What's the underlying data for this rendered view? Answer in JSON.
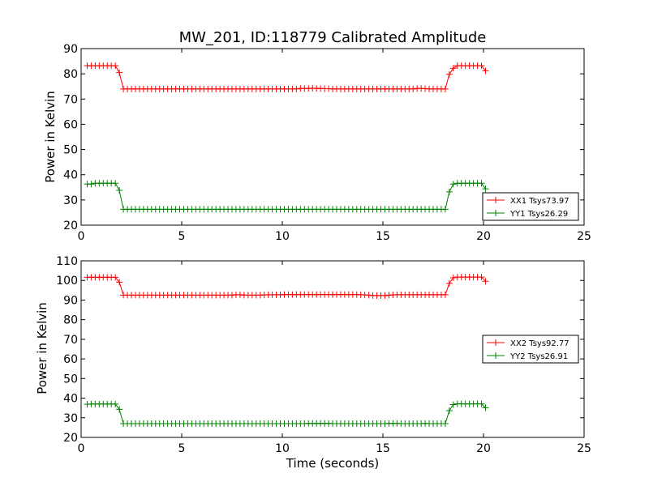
{
  "chart_data": [
    {
      "type": "line",
      "title": "MW_201, ID:118779 Calibrated Amplitude",
      "xlabel": "",
      "ylabel": "Power in Kelvin",
      "xlim": [
        0,
        25
      ],
      "ylim": [
        20,
        90
      ],
      "xticks": [
        "0",
        "5",
        "10",
        "15",
        "20",
        "25"
      ],
      "yticks": [
        "20",
        "30",
        "40",
        "50",
        "60",
        "70",
        "80",
        "90"
      ],
      "legend_position": "lower-right",
      "grid": false,
      "series": [
        {
          "name": "XX1 Tsys73.97",
          "color": "#ff0000",
          "marker": "plus",
          "x": [
            0.3,
            0.5,
            0.7,
            0.9,
            1.1,
            1.3,
            1.5,
            1.7,
            1.9,
            2.1,
            2.3,
            2.5,
            2.7,
            2.9,
            3.1,
            3.3,
            3.5,
            3.7,
            3.9,
            4.1,
            4.3,
            4.5,
            4.7,
            4.9,
            5.1,
            5.3,
            5.5,
            5.7,
            5.9,
            6.1,
            6.3,
            6.5,
            6.7,
            6.9,
            7.1,
            7.3,
            7.5,
            7.7,
            7.9,
            8.1,
            8.3,
            8.5,
            8.7,
            8.9,
            9.1,
            9.3,
            9.5,
            9.7,
            9.9,
            10.1,
            10.3,
            10.5,
            10.7,
            10.9,
            11.1,
            11.3,
            11.5,
            11.7,
            11.9,
            12.1,
            12.3,
            12.5,
            12.7,
            12.9,
            13.1,
            13.3,
            13.5,
            13.7,
            13.9,
            14.1,
            14.3,
            14.5,
            14.7,
            14.9,
            15.1,
            15.3,
            15.5,
            15.7,
            15.9,
            16.1,
            16.3,
            16.5,
            16.7,
            16.9,
            17.1,
            17.3,
            17.5,
            17.7,
            17.9,
            18.1,
            18.3,
            18.5,
            18.7,
            18.9,
            19.1,
            19.3,
            19.5,
            19.7,
            19.9,
            20.1
          ],
          "y": [
            83.2,
            83.2,
            83.2,
            83.2,
            83.2,
            83.2,
            83.2,
            83.2,
            80.5,
            74,
            74,
            74,
            74,
            74,
            74,
            74,
            74,
            74,
            74,
            74,
            74,
            74,
            74,
            74,
            74,
            74,
            74,
            74,
            74,
            74,
            74,
            74,
            74,
            74,
            74,
            74,
            74,
            74,
            74,
            74,
            74,
            74,
            74,
            74,
            74,
            74,
            74,
            74,
            74,
            74,
            74,
            74,
            74,
            74.2,
            74.2,
            74.2,
            74.3,
            74.2,
            74.2,
            74.1,
            74.1,
            74,
            74,
            74,
            74,
            74,
            74,
            74,
            74,
            74,
            74,
            74,
            74,
            74,
            74,
            74,
            74,
            74,
            74,
            74,
            74,
            74,
            74.2,
            74.2,
            74.1,
            74,
            74,
            74,
            74,
            74,
            79.8,
            82.2,
            83.2,
            83.2,
            83.2,
            83.2,
            83.2,
            83.2,
            83.2,
            81.2
          ]
        },
        {
          "name": "YY1 Tsys26.29",
          "color": "#008000",
          "marker": "plus",
          "x": [
            0.3,
            0.5,
            0.7,
            0.9,
            1.1,
            1.3,
            1.5,
            1.7,
            1.9,
            2.1,
            2.3,
            2.5,
            2.7,
            2.9,
            3.1,
            3.3,
            3.5,
            3.7,
            3.9,
            4.1,
            4.3,
            4.5,
            4.7,
            4.9,
            5.1,
            5.3,
            5.5,
            5.7,
            5.9,
            6.1,
            6.3,
            6.5,
            6.7,
            6.9,
            7.1,
            7.3,
            7.5,
            7.7,
            7.9,
            8.1,
            8.3,
            8.5,
            8.7,
            8.9,
            9.1,
            9.3,
            9.5,
            9.7,
            9.9,
            10.1,
            10.3,
            10.5,
            10.7,
            10.9,
            11.1,
            11.3,
            11.5,
            11.7,
            11.9,
            12.1,
            12.3,
            12.5,
            12.7,
            12.9,
            13.1,
            13.3,
            13.5,
            13.7,
            13.9,
            14.1,
            14.3,
            14.5,
            14.7,
            14.9,
            15.1,
            15.3,
            15.5,
            15.7,
            15.9,
            16.1,
            16.3,
            16.5,
            16.7,
            16.9,
            17.1,
            17.3,
            17.5,
            17.7,
            17.9,
            18.1,
            18.3,
            18.5,
            18.7,
            18.9,
            19.1,
            19.3,
            19.5,
            19.7,
            19.9,
            20.1
          ],
          "y": [
            36.3,
            36.3,
            36.6,
            36.6,
            36.6,
            36.6,
            36.6,
            36.6,
            33.8,
            26.3,
            26.3,
            26.3,
            26.3,
            26.3,
            26.3,
            26.3,
            26.3,
            26.3,
            26.3,
            26.3,
            26.3,
            26.3,
            26.3,
            26.3,
            26.3,
            26.3,
            26.3,
            26.3,
            26.3,
            26.3,
            26.3,
            26.3,
            26.3,
            26.3,
            26.3,
            26.3,
            26.3,
            26.3,
            26.3,
            26.3,
            26.3,
            26.3,
            26.3,
            26.3,
            26.3,
            26.3,
            26.3,
            26.3,
            26.3,
            26.3,
            26.3,
            26.3,
            26.3,
            26.3,
            26.3,
            26.3,
            26.3,
            26.3,
            26.3,
            26.3,
            26.3,
            26.3,
            26.3,
            26.3,
            26.3,
            26.3,
            26.3,
            26.3,
            26.3,
            26.3,
            26.3,
            26.3,
            26.3,
            26.3,
            26.3,
            26.3,
            26.3,
            26.3,
            26.3,
            26.3,
            26.3,
            26.3,
            26.3,
            26.3,
            26.3,
            26.3,
            26.3,
            26.3,
            26.3,
            26.3,
            33.2,
            36.3,
            36.6,
            36.6,
            36.6,
            36.6,
            36.6,
            36.6,
            36.6,
            34.4
          ]
        }
      ]
    },
    {
      "type": "line",
      "title": "",
      "xlabel": "Time (seconds)",
      "ylabel": "Power in Kelvin",
      "xlim": [
        0,
        25
      ],
      "ylim": [
        20,
        110
      ],
      "xticks": [
        "0",
        "5",
        "10",
        "15",
        "20",
        "25"
      ],
      "yticks": [
        "20",
        "30",
        "40",
        "50",
        "60",
        "70",
        "80",
        "90",
        "100",
        "110"
      ],
      "legend_position": "center-right",
      "grid": false,
      "series": [
        {
          "name": "XX2 Tsys92.77",
          "color": "#ff0000",
          "marker": "plus",
          "x": [
            0.3,
            0.5,
            0.7,
            0.9,
            1.1,
            1.3,
            1.5,
            1.7,
            1.9,
            2.1,
            2.3,
            2.5,
            2.7,
            2.9,
            3.1,
            3.3,
            3.5,
            3.7,
            3.9,
            4.1,
            4.3,
            4.5,
            4.7,
            4.9,
            5.1,
            5.3,
            5.5,
            5.7,
            5.9,
            6.1,
            6.3,
            6.5,
            6.7,
            6.9,
            7.1,
            7.3,
            7.5,
            7.7,
            7.9,
            8.1,
            8.3,
            8.5,
            8.7,
            8.9,
            9.1,
            9.3,
            9.5,
            9.7,
            9.9,
            10.1,
            10.3,
            10.5,
            10.7,
            10.9,
            11.1,
            11.3,
            11.5,
            11.7,
            11.9,
            12.1,
            12.3,
            12.5,
            12.7,
            12.9,
            13.1,
            13.3,
            13.5,
            13.7,
            13.9,
            14.1,
            14.3,
            14.5,
            14.7,
            14.9,
            15.1,
            15.3,
            15.5,
            15.7,
            15.9,
            16.1,
            16.3,
            16.5,
            16.7,
            16.9,
            17.1,
            17.3,
            17.5,
            17.7,
            17.9,
            18.1,
            18.3,
            18.5,
            18.7,
            18.9,
            19.1,
            19.3,
            19.5,
            19.7,
            19.9,
            20.1
          ],
          "y": [
            101.6,
            101.6,
            101.6,
            101.6,
            101.6,
            101.6,
            101.6,
            101.6,
            99.1,
            92.5,
            92.5,
            92.5,
            92.5,
            92.5,
            92.5,
            92.5,
            92.5,
            92.5,
            92.5,
            92.5,
            92.5,
            92.5,
            92.5,
            92.5,
            92.5,
            92.5,
            92.5,
            92.5,
            92.5,
            92.5,
            92.5,
            92.5,
            92.5,
            92.5,
            92.5,
            92.5,
            92.5,
            92.7,
            92.7,
            92.5,
            92.5,
            92.5,
            92.5,
            92.5,
            92.6,
            92.7,
            92.7,
            92.7,
            92.7,
            92.8,
            92.8,
            92.8,
            92.8,
            92.8,
            92.8,
            92.8,
            92.8,
            92.8,
            92.8,
            92.8,
            92.8,
            92.8,
            92.8,
            92.8,
            92.8,
            92.8,
            92.8,
            92.8,
            92.7,
            92.6,
            92.5,
            92.3,
            92.3,
            92.3,
            92.3,
            92.5,
            92.6,
            92.7,
            92.7,
            92.7,
            92.7,
            92.7,
            92.7,
            92.7,
            92.7,
            92.7,
            92.7,
            92.7,
            92.7,
            92.7,
            98.5,
            101.4,
            101.7,
            101.7,
            101.7,
            101.7,
            101.7,
            101.7,
            101.7,
            99.6
          ]
        },
        {
          "name": "YY2 Tsys26.91",
          "color": "#008000",
          "marker": "plus",
          "x": [
            0.3,
            0.5,
            0.7,
            0.9,
            1.1,
            1.3,
            1.5,
            1.7,
            1.9,
            2.1,
            2.3,
            2.5,
            2.7,
            2.9,
            3.1,
            3.3,
            3.5,
            3.7,
            3.9,
            4.1,
            4.3,
            4.5,
            4.7,
            4.9,
            5.1,
            5.3,
            5.5,
            5.7,
            5.9,
            6.1,
            6.3,
            6.5,
            6.7,
            6.9,
            7.1,
            7.3,
            7.5,
            7.7,
            7.9,
            8.1,
            8.3,
            8.5,
            8.7,
            8.9,
            9.1,
            9.3,
            9.5,
            9.7,
            9.9,
            10.1,
            10.3,
            10.5,
            10.7,
            10.9,
            11.1,
            11.3,
            11.5,
            11.7,
            11.9,
            12.1,
            12.3,
            12.5,
            12.7,
            12.9,
            13.1,
            13.3,
            13.5,
            13.7,
            13.9,
            14.1,
            14.3,
            14.5,
            14.7,
            14.9,
            15.1,
            15.3,
            15.5,
            15.7,
            15.9,
            16.1,
            16.3,
            16.5,
            16.7,
            16.9,
            17.1,
            17.3,
            17.5,
            17.7,
            17.9,
            18.1,
            18.3,
            18.5,
            18.7,
            18.9,
            19.1,
            19.3,
            19.5,
            19.7,
            19.9,
            20.1
          ],
          "y": [
            36.9,
            37,
            37,
            37,
            37,
            37,
            37,
            37,
            34.3,
            27,
            27,
            27,
            27,
            27,
            27,
            27,
            27,
            27,
            27,
            27,
            27,
            27,
            27,
            27,
            27,
            27,
            27,
            27,
            27,
            27,
            27,
            27,
            27,
            27,
            27,
            27,
            27,
            27,
            27,
            27,
            27,
            27,
            27,
            27,
            27,
            27,
            27,
            27,
            27,
            27,
            27,
            27,
            27,
            27,
            27,
            27.1,
            27.1,
            27.1,
            27.1,
            27.1,
            27.1,
            27,
            27,
            27,
            27,
            27,
            27,
            27,
            27,
            27,
            27,
            27,
            27,
            27,
            27,
            27.1,
            27.1,
            27.1,
            27,
            27,
            27,
            27,
            27,
            27,
            27.1,
            27,
            27,
            27,
            27,
            27,
            33.6,
            36.7,
            37.1,
            37.1,
            37.1,
            37.1,
            37.1,
            37.1,
            37.1,
            35.1
          ]
        }
      ]
    }
  ]
}
